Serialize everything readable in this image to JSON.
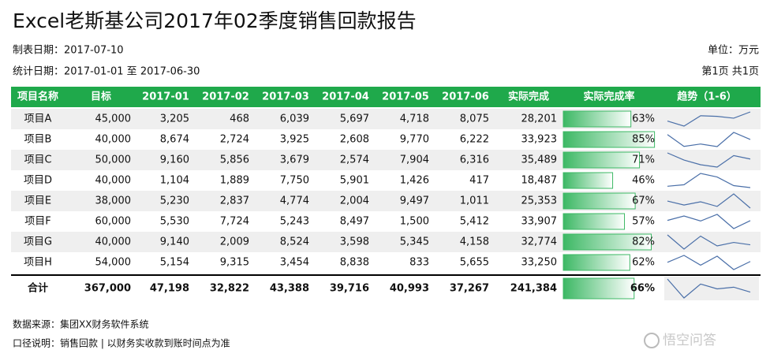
{
  "header": {
    "title": "Excel老斯基公司2017年02季度销售回款报告",
    "made_date": "制表日期：2017-07-10",
    "stat_date": "统计日期：2017-01-01 至 2017-06-30",
    "unit": "单位：万元",
    "page": "第1页 共1页"
  },
  "table": {
    "columns": [
      "项目名称",
      "目标",
      "2017-01",
      "2017-02",
      "2017-03",
      "2017-04",
      "2017-05",
      "2017-06",
      "实际完成",
      "实际完成率",
      "趋势（1-6）"
    ],
    "rows": [
      [
        "项目A",
        {
          "value": 45000,
          "label": "45,000"
        },
        {
          "value": 3205,
          "label": "3,205"
        },
        468,
        {
          "value": 6039,
          "label": "6,039"
        },
        {
          "value": 5697,
          "label": "5,697"
        },
        {
          "value": 4718,
          "label": "4,718"
        },
        {
          "value": 8075,
          "label": "8,075"
        },
        {
          "value": 28201,
          "label": "28,201"
        },
        {
          "value": 63,
          "label": "63%"
        }
      ],
      [
        "项目B",
        {
          "value": 40000,
          "label": "40,000"
        },
        {
          "value": 8674,
          "label": "8,674"
        },
        {
          "value": 2724,
          "label": "2,724"
        },
        {
          "value": 3925,
          "label": "3,925"
        },
        {
          "value": 2608,
          "label": "2,608"
        },
        {
          "value": 9770,
          "label": "9,770"
        },
        {
          "value": 6222,
          "label": "6,222"
        },
        {
          "value": 33923,
          "label": "33,923"
        },
        {
          "value": 85,
          "label": "85%"
        }
      ],
      [
        "项目C",
        {
          "value": 50000,
          "label": "50,000"
        },
        {
          "value": 9160,
          "label": "9,160"
        },
        {
          "value": 5856,
          "label": "5,856"
        },
        {
          "value": 3679,
          "label": "3,679"
        },
        {
          "value": 2574,
          "label": "2,574"
        },
        {
          "value": 7904,
          "label": "7,904"
        },
        {
          "value": 6316,
          "label": "6,316"
        },
        {
          "value": 35489,
          "label": "35,489"
        },
        {
          "value": 71,
          "label": "71%"
        }
      ],
      [
        "项目D",
        {
          "value": 40000,
          "label": "40,000"
        },
        {
          "value": 1104,
          "label": "1,104"
        },
        {
          "value": 1889,
          "label": "1,889"
        },
        {
          "value": 7750,
          "label": "7,750"
        },
        {
          "value": 5901,
          "label": "5,901"
        },
        {
          "value": 1426,
          "label": "1,426"
        },
        417,
        {
          "value": 18487,
          "label": "18,487"
        },
        {
          "value": 46,
          "label": "46%"
        }
      ],
      [
        "项目E",
        {
          "value": 38000,
          "label": "38,000"
        },
        {
          "value": 5230,
          "label": "5,230"
        },
        {
          "value": 2837,
          "label": "2,837"
        },
        {
          "value": 4774,
          "label": "4,774"
        },
        {
          "value": 2004,
          "label": "2,004"
        },
        {
          "value": 9497,
          "label": "9,497"
        },
        {
          "value": 1011,
          "label": "1,011"
        },
        {
          "value": 25353,
          "label": "25,353"
        },
        {
          "value": 67,
          "label": "67%"
        }
      ],
      [
        "项目F",
        {
          "value": 60000,
          "label": "60,000"
        },
        {
          "value": 5530,
          "label": "5,530"
        },
        {
          "value": 7724,
          "label": "7,724"
        },
        {
          "value": 5243,
          "label": "5,243"
        },
        {
          "value": 8497,
          "label": "8,497"
        },
        {
          "value": 1500,
          "label": "1,500"
        },
        {
          "value": 5412,
          "label": "5,412"
        },
        {
          "value": 33907,
          "label": "33,907"
        },
        {
          "value": 57,
          "label": "57%"
        }
      ],
      [
        "项目G",
        {
          "value": 40000,
          "label": "40,000"
        },
        {
          "value": 9140,
          "label": "9,140"
        },
        {
          "value": 2009,
          "label": "2,009"
        },
        {
          "value": 8524,
          "label": "8,524"
        },
        {
          "value": 3598,
          "label": "3,598"
        },
        {
          "value": 5345,
          "label": "5,345"
        },
        {
          "value": 4158,
          "label": "4,158"
        },
        {
          "value": 32774,
          "label": "32,774"
        },
        {
          "value": 82,
          "label": "82%"
        }
      ],
      [
        "项目H",
        {
          "value": 54000,
          "label": "54,000"
        },
        {
          "value": 5154,
          "label": "5,154"
        },
        {
          "value": 9315,
          "label": "9,315"
        },
        {
          "value": 3454,
          "label": "3,454"
        },
        {
          "value": 8838,
          "label": "8,838"
        },
        833,
        {
          "value": 5655,
          "label": "5,655"
        },
        {
          "value": 33250,
          "label": "33,250"
        },
        {
          "value": 62,
          "label": "62%"
        }
      ],
      [
        "合计",
        {
          "value": 367000,
          "label": "367,000"
        },
        {
          "value": 47198,
          "label": "47,198"
        },
        {
          "value": 32822,
          "label": "32,822"
        },
        {
          "value": 43388,
          "label": "43,388"
        },
        {
          "value": 39716,
          "label": "39,716"
        },
        {
          "value": 40993,
          "label": "40,993"
        },
        {
          "value": 37267,
          "label": "37,267"
        },
        {
          "value": 241384,
          "label": "241,384"
        },
        {
          "value": 66,
          "label": "66%"
        }
      ]
    ]
  },
  "footer": {
    "source": "数据来源：集团XX财务软件系统",
    "note": "口径说明：销售回款 | 以财务实收款到账时间点为准",
    "watermark": "悟空问答"
  }
}
